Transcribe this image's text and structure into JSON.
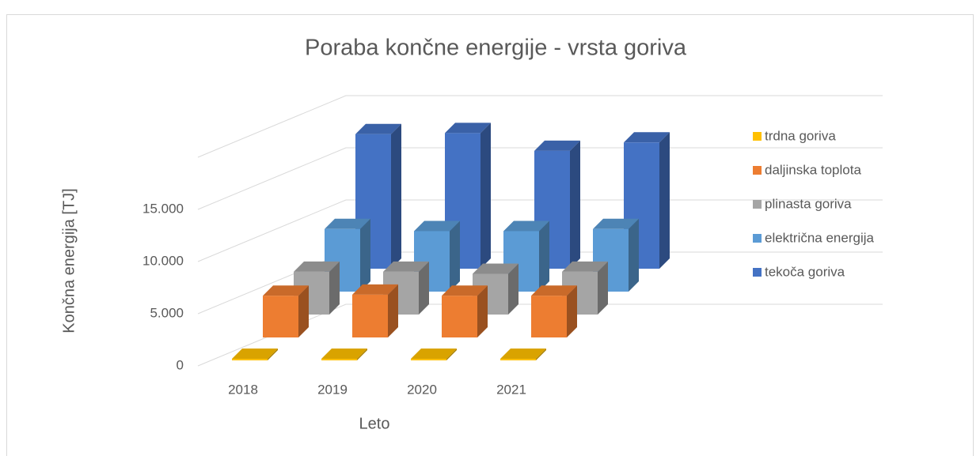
{
  "chart_data": {
    "type": "bar3d",
    "title": "Poraba končne energije - vrsta goriva",
    "x_label": "Leto",
    "y_label": "Končna energija [TJ]",
    "categories": [
      "2018",
      "2019",
      "2020",
      "2021"
    ],
    "series": [
      {
        "name": "trdna goriva",
        "color": "#ffc000",
        "values": [
          150,
          150,
          150,
          150
        ]
      },
      {
        "name": "daljinska toplota",
        "color": "#ed7d31",
        "values": [
          4000,
          4100,
          4000,
          4000
        ]
      },
      {
        "name": "plinasta goriva",
        "color": "#a5a5a5",
        "values": [
          4100,
          4100,
          3900,
          4100
        ]
      },
      {
        "name": "električna energija",
        "color": "#5b9bd5",
        "values": [
          6000,
          5800,
          5800,
          6000
        ]
      },
      {
        "name": "tekoča goriva",
        "color": "#4472c4",
        "values": [
          12900,
          13000,
          11300,
          12100
        ]
      }
    ],
    "ylim": [
      0,
      20000
    ],
    "yticks": [
      0,
      {
        "value": 5000,
        "label": "5.000"
      },
      {
        "value": 10000,
        "label": "10.000"
      },
      {
        "value": 15000,
        "label": "15.000"
      }
    ],
    "grid": true,
    "legend": "right"
  }
}
